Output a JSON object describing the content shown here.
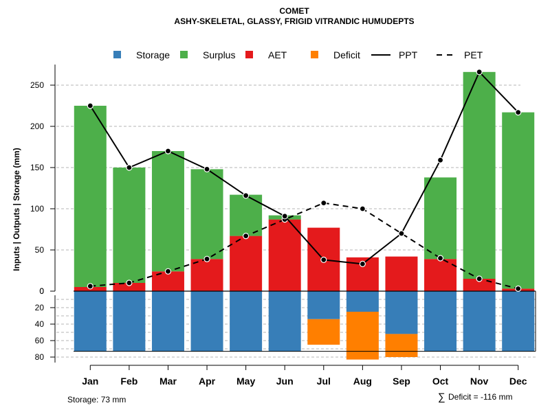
{
  "chart_data": {
    "type": "bar",
    "title": "COMET",
    "subtitle": "ASHY-SKELETAL, GLASSY, FRIGID VITRANDIC HUMUDEPTS",
    "ylabel": "Inputs | Outputs | Storage    (mm)",
    "categories": [
      "Jan",
      "Feb",
      "Mar",
      "Apr",
      "May",
      "Jun",
      "Jul",
      "Aug",
      "Sep",
      "Oct",
      "Nov",
      "Dec"
    ],
    "upper_ylim": [
      0,
      275
    ],
    "upper_ticks": [
      "0",
      "50",
      "100",
      "150",
      "200",
      "250"
    ],
    "lower_ylim": [
      0,
      80
    ],
    "lower_ticks": [
      "20",
      "40",
      "60",
      "80"
    ],
    "legend": [
      {
        "label": "Storage",
        "kind": "box",
        "color": "#377eb8"
      },
      {
        "label": "Surplus",
        "kind": "box",
        "color": "#4daf4a"
      },
      {
        "label": "AET",
        "kind": "box",
        "color": "#e41a1c"
      },
      {
        "label": "Deficit",
        "kind": "box",
        "color": "#ff7f00"
      },
      {
        "label": "PPT",
        "kind": "solid",
        "color": "#000000"
      },
      {
        "label": "PET",
        "kind": "dashed",
        "color": "#000000"
      }
    ],
    "series": [
      {
        "name": "AET",
        "color": "#e41a1c",
        "values": [
          5,
          10,
          24,
          39,
          67,
          87,
          77,
          41,
          42,
          39,
          15,
          3
        ]
      },
      {
        "name": "Surplus",
        "color": "#4daf4a",
        "values": [
          220,
          140,
          146,
          109,
          50,
          5,
          0,
          0,
          0,
          99,
          251,
          214
        ]
      },
      {
        "name": "PPT",
        "color": "#000000",
        "values": [
          225,
          150,
          170,
          148,
          116,
          91,
          38,
          33,
          70,
          159,
          266,
          217
        ]
      },
      {
        "name": "PET",
        "color": "#000000",
        "values": [
          6,
          10,
          24,
          39,
          67,
          87,
          107,
          100,
          70,
          40,
          15,
          3
        ]
      },
      {
        "name": "Storage",
        "color": "#377eb8",
        "values": [
          73,
          73,
          73,
          73,
          73,
          73,
          34,
          25,
          52,
          73,
          73,
          73
        ]
      },
      {
        "name": "Deficit",
        "color": "#ff7f00",
        "values": [
          0,
          0,
          0,
          0,
          0,
          0,
          31,
          58,
          28,
          0,
          0,
          0
        ]
      }
    ],
    "storage_total_label": "Storage: 73 mm",
    "deficit_total_symbol": "∑",
    "deficit_total_label": "Deficit = -116 mm"
  }
}
